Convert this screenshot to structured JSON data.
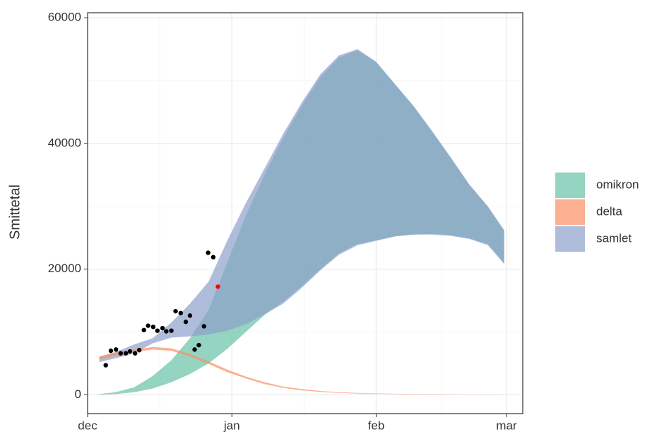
{
  "chart_data": {
    "type": "ribbon",
    "y_label": "Smittetal",
    "xlim": [
      0,
      93.5
    ],
    "xticks": [
      {
        "value": 0,
        "label": "dec"
      },
      {
        "value": 31,
        "label": "jan"
      },
      {
        "value": 62,
        "label": "feb"
      },
      {
        "value": 90,
        "label": "mar"
      }
    ],
    "ylim": [
      -3000,
      60800
    ],
    "yticks": [
      0,
      20000,
      40000,
      60000
    ],
    "grid": true,
    "legend": "right",
    "x": [
      2.5,
      6,
      10,
      14,
      18,
      22,
      26,
      30,
      34,
      38,
      42,
      46,
      50,
      54,
      58,
      62,
      66,
      70,
      74,
      78,
      82,
      86,
      89.5
    ],
    "series": [
      {
        "name": "omikron",
        "color": "#66c2a5",
        "lower": [
          0,
          100,
          400,
          1000,
          2000,
          3300,
          5000,
          7300,
          10000,
          12700,
          14800,
          17300,
          20000,
          22500,
          24000,
          24600,
          25200,
          25500,
          25600,
          25400,
          24900,
          24000,
          21000
        ],
        "upper": [
          100,
          400,
          1200,
          3000,
          5500,
          9000,
          13500,
          21000,
          28500,
          35000,
          40800,
          46000,
          50500,
          53700,
          54800,
          52900,
          49400,
          45900,
          41900,
          37700,
          33400,
          29900,
          26100
        ]
      },
      {
        "name": "delta",
        "color": "#fc8d62",
        "lower": [
          5600,
          6200,
          6800,
          7200,
          7000,
          6100,
          4900,
          3600,
          2600,
          1700,
          1100,
          700,
          450,
          300,
          200,
          150,
          100,
          70,
          50,
          40,
          30,
          20,
          15
        ],
        "upper": [
          6100,
          6700,
          7200,
          7600,
          7400,
          6500,
          5300,
          4000,
          2900,
          2000,
          1300,
          900,
          600,
          400,
          300,
          220,
          160,
          120,
          90,
          70,
          50,
          40,
          30
        ]
      },
      {
        "name": "samlet",
        "color": "#8da0cb",
        "lower": [
          5200,
          5800,
          6600,
          8200,
          9100,
          9300,
          9600,
          10200,
          11200,
          12800,
          14500,
          17000,
          19800,
          22300,
          23800,
          24500,
          25200,
          25500,
          25500,
          25300,
          24800,
          23800,
          20800
        ],
        "upper": [
          6000,
          6800,
          8000,
          9000,
          11500,
          14500,
          18000,
          24500,
          30500,
          36000,
          41500,
          46500,
          51000,
          54000,
          55000,
          53000,
          49500,
          46000,
          42000,
          37800,
          33500,
          30000,
          26200
        ]
      }
    ],
    "points": {
      "color": "#000000",
      "x": [
        3.9,
        5.0,
        6.1,
        7.1,
        8.2,
        9.1,
        10.2,
        11.1,
        12.1,
        13.0,
        14.1,
        15.0,
        16.1,
        16.9,
        18.0,
        18.9,
        20.0,
        21.1,
        22.0,
        23.0,
        23.9,
        25.0,
        25.9,
        27.0
      ],
      "values": [
        4700,
        7000,
        7200,
        6600,
        6600,
        6900,
        6600,
        7100,
        10300,
        11000,
        10800,
        10200,
        10600,
        10100,
        10200,
        13300,
        13000,
        11600,
        12600,
        7200,
        7900,
        10900,
        22600,
        21900
      ]
    },
    "highlight": {
      "color": "#ff0000",
      "x": 28.0,
      "value": 17200
    }
  }
}
